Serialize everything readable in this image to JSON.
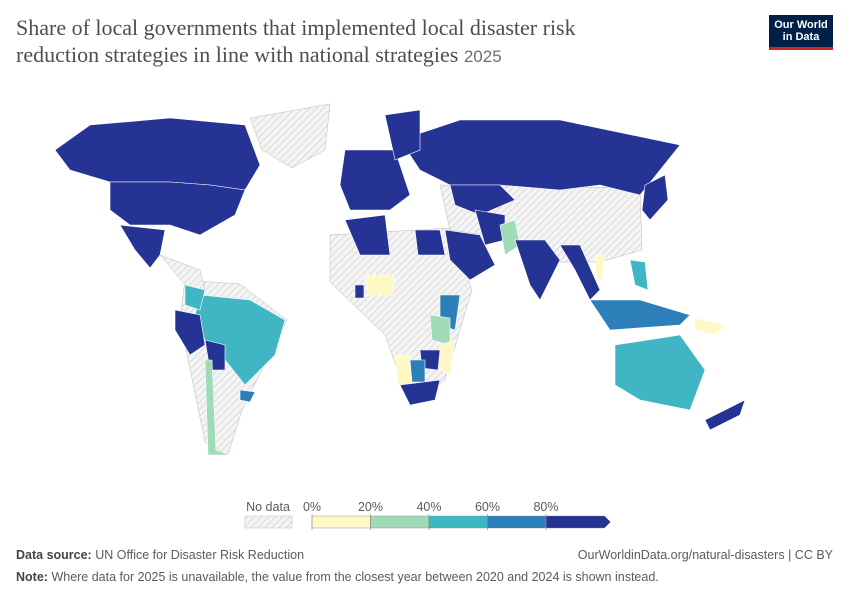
{
  "header": {
    "title": "Share of local governments that implemented local disaster risk reduction strategies in line with national strategies",
    "year": "2025",
    "logo": [
      "Our World",
      "in Data"
    ]
  },
  "chart_data": {
    "type": "choropleth",
    "values": [
      100,
      100,
      95,
      55,
      50,
      95,
      95,
      30,
      75,
      100,
      95,
      95,
      95,
      100,
      95,
      30,
      100,
      95,
      100,
      55,
      70,
      55,
      100,
      100,
      95,
      5,
      100,
      70,
      30,
      10,
      95,
      5,
      65,
      100,
      10,
      10
    ],
    "legend": {
      "no_data_label": "No data",
      "ticks": [
        {
          "value": 0,
          "label": "0%"
        },
        {
          "value": 20,
          "label": "20%"
        },
        {
          "value": 40,
          "label": "40%"
        },
        {
          "value": 60,
          "label": "60%"
        },
        {
          "value": 80,
          "label": "80%"
        }
      ],
      "colors": [
        "#fdf8c4",
        "#a0dab6",
        "#40b6c4",
        "#2c7fb8",
        "#253494"
      ],
      "no_data_color": "#e6e6e6"
    }
  },
  "footer": {
    "source_label": "Data source:",
    "source": "UN Office for Disaster Risk Reduction",
    "url": "OurWorldinData.org/natural-disasters | CC BY",
    "note_label": "Note:",
    "note": "Where data for 2025 is unavailable, the value from the closest year between 2020 and 2024 is shown instead."
  }
}
